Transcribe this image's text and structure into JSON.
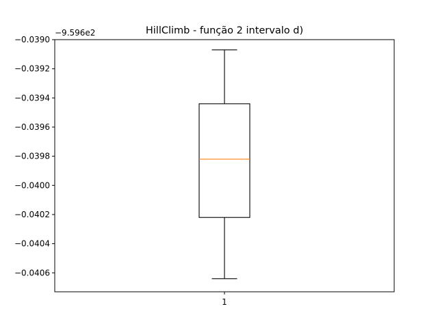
{
  "chart_data": {
    "type": "box",
    "title": "HillClimb - função 2 intervalo d)",
    "xlabel": "",
    "ylabel": "",
    "offset_label": "−9.596e2",
    "categories": [
      "1"
    ],
    "ylim": [
      -0.04073,
      -0.039
    ],
    "yticks": [
      -0.039,
      -0.0392,
      -0.0394,
      -0.0396,
      -0.0398,
      -0.04,
      -0.0402,
      -0.0404,
      -0.0406
    ],
    "ytick_labels": [
      "−0.0390",
      "−0.0392",
      "−0.0394",
      "−0.0396",
      "−0.0398",
      "−0.0400",
      "−0.0402",
      "−0.0404",
      "−0.0406"
    ],
    "boxes": [
      {
        "category": "1",
        "whisker_low": -0.04064,
        "q1": -0.04022,
        "median": -0.03982,
        "q3": -0.03944,
        "whisker_high": -0.03907
      }
    ],
    "colors": {
      "box": "#000000",
      "median": "#ff7f0e"
    },
    "grid": false
  }
}
